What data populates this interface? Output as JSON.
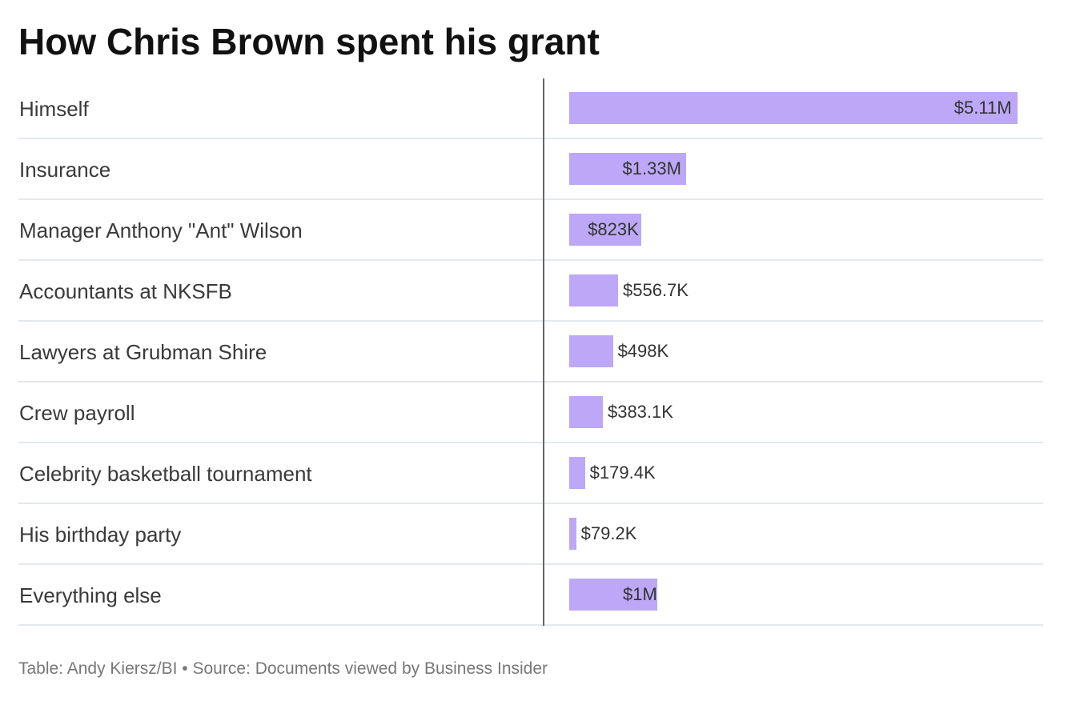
{
  "title": "How Chris Brown spent his grant",
  "footer": {
    "credit": "Table: Andy Kiersz/BI",
    "separator": "•",
    "source": "Source: Documents viewed by Business Insider"
  },
  "colors": {
    "bar": "#bca8f6",
    "divider": "#e4e8ee",
    "axis": "#666666",
    "title": "#111111",
    "text": "#333333",
    "footer": "#777777"
  },
  "chart_data": {
    "type": "table",
    "title": "How Chris Brown spent his grant",
    "categories": [
      "Himself",
      "Insurance",
      "Manager Anthony \"Ant\" Wilson",
      "Accountants at NKSFB",
      "Lawyers at Grubman Shire",
      "Crew payroll",
      "Celebrity basketball tournament",
      "His birthday party",
      "Everything else"
    ],
    "values": [
      5110000,
      1330000,
      823000,
      556700,
      498000,
      383100,
      179400,
      79200,
      1000000
    ],
    "value_labels": [
      "$5.11M",
      "$1.33M",
      "$823K",
      "$556.7K",
      "$498K",
      "$383.1K",
      "$179.4K",
      "$79.2K",
      "$1M"
    ],
    "xlim": [
      0,
      5110000
    ],
    "grid": false
  }
}
